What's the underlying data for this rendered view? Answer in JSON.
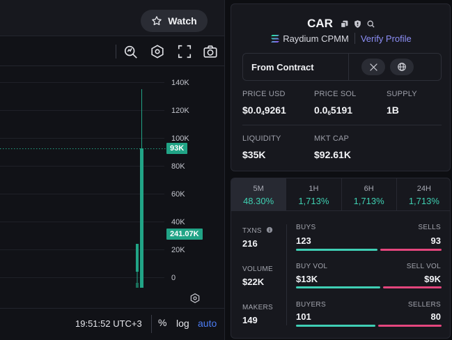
{
  "watch_label": "Watch",
  "axis": {
    "labels": [
      "140K",
      "120K",
      "100K",
      "80K",
      "60K",
      "40K",
      "20K",
      "0"
    ],
    "price_tag": "93K",
    "volume_tag": "241.07K"
  },
  "bottom_bar": {
    "time": "19:51:52 UTC+3",
    "percent_label": "%",
    "log_label": "log",
    "auto_label": "auto"
  },
  "token": {
    "symbol": "CAR",
    "dex": "Raydium CPMM",
    "verify_label": "Verify Profile",
    "contract_label": "From Contract"
  },
  "stats": {
    "price_usd_label": "PRICE USD",
    "price_usd_prefix": "$0.0",
    "price_usd_sub": "4",
    "price_usd_rest": "9261",
    "price_sol_label": "PRICE SOL",
    "price_sol_prefix": "0.0",
    "price_sol_sub": "6",
    "price_sol_rest": "5191",
    "supply_label": "SUPPLY",
    "supply_value": "1B",
    "liquidity_label": "LIQUIDITY",
    "liquidity_value": "$35K",
    "mktcap_label": "MKT CAP",
    "mktcap_value": "$92.61K"
  },
  "tabs": [
    {
      "label": "5M",
      "value": "48.30%"
    },
    {
      "label": "1H",
      "value": "1,713%"
    },
    {
      "label": "6H",
      "value": "1,713%"
    },
    {
      "label": "24H",
      "value": "1,713%"
    }
  ],
  "txns": {
    "txns_label": "TXNS",
    "txns_value": "216",
    "buys_label": "BUYS",
    "buys_value": "123",
    "sells_label": "SELLS",
    "sells_value": "93",
    "volume_label": "VOLUME",
    "volume_value": "$22K",
    "buy_vol_label": "BUY VOL",
    "buy_vol_value": "$13K",
    "sell_vol_label": "SELL VOL",
    "sell_vol_value": "$9K",
    "makers_label": "MAKERS",
    "makers_value": "149",
    "buyers_label": "BUYERS",
    "buyers_value": "101",
    "sellers_label": "SELLERS",
    "sellers_value": "80"
  },
  "colors": {
    "accent_green": "#3fcfb5",
    "accent_red": "#e4467d",
    "tag_green": "#21a486",
    "link_blue": "#4c7df5",
    "verify_purple": "#8d8ff7"
  }
}
